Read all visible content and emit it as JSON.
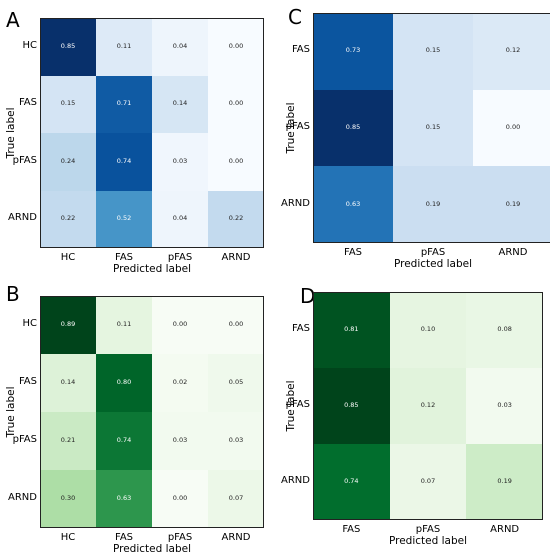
{
  "chart_data": [
    {
      "id": "A",
      "type": "heatmap",
      "panel_label": "A",
      "colormap": "blues",
      "xlabel": "Predicted label",
      "ylabel": "True label",
      "x_categories": [
        "HC",
        "FAS",
        "pFAS",
        "ARND"
      ],
      "y_categories": [
        "HC",
        "FAS",
        "pFAS",
        "ARND"
      ],
      "cell_labels": [
        [
          "0.85",
          "0.11",
          "0.04",
          "0.00"
        ],
        [
          "0.15",
          "0.71",
          "0.14",
          "0.00"
        ],
        [
          "0.24",
          "0.74",
          "0.03",
          "0.00"
        ],
        [
          "0.22",
          "0.52",
          "0.04",
          "0.22"
        ]
      ],
      "values": [
        [
          0.85,
          0.11,
          0.04,
          0.0
        ],
        [
          0.15,
          0.71,
          0.14,
          0.0
        ],
        [
          0.24,
          0.74,
          0.03,
          0.0
        ],
        [
          0.22,
          0.52,
          0.04,
          0.22
        ]
      ],
      "vmax": 0.85
    },
    {
      "id": "C",
      "type": "heatmap",
      "panel_label": "C",
      "colormap": "blues",
      "xlabel": "Predicted label",
      "ylabel": "True label",
      "x_categories": [
        "FAS",
        "pFAS",
        "ARND"
      ],
      "y_categories": [
        "FAS",
        "pFAS",
        "ARND"
      ],
      "cell_labels": [
        [
          "0.73",
          "0.15",
          "0.12"
        ],
        [
          "0.85",
          "0.15",
          "0.00"
        ],
        [
          "0.63",
          "0.19",
          "0.19"
        ]
      ],
      "values": [
        [
          0.73,
          0.15,
          0.12
        ],
        [
          0.85,
          0.15,
          0.0
        ],
        [
          0.63,
          0.19,
          0.19
        ]
      ],
      "vmax": 0.85
    },
    {
      "id": "B",
      "type": "heatmap",
      "panel_label": "B",
      "colormap": "greens",
      "xlabel": "Predicted label",
      "ylabel": "True label",
      "x_categories": [
        "HC",
        "FAS",
        "pFAS",
        "ARND"
      ],
      "y_categories": [
        "HC",
        "FAS",
        "pFAS",
        "ARND"
      ],
      "cell_labels": [
        [
          "0.89",
          "0.11",
          "0.00",
          "0.00"
        ],
        [
          "0.14",
          "0.80",
          "0.02",
          "0.05"
        ],
        [
          "0.21",
          "0.74",
          "0.03",
          "0.03"
        ],
        [
          "0.30",
          "0.63",
          "0.00",
          "0.07"
        ]
      ],
      "values": [
        [
          0.89,
          0.11,
          0.0,
          0.0
        ],
        [
          0.14,
          0.8,
          0.02,
          0.05
        ],
        [
          0.21,
          0.74,
          0.03,
          0.03
        ],
        [
          0.3,
          0.63,
          0.0,
          0.07
        ]
      ],
      "vmax": 0.89
    },
    {
      "id": "D",
      "type": "heatmap",
      "panel_label": "D",
      "colormap": "greens",
      "xlabel": "Predicted label",
      "ylabel": "True label",
      "x_categories": [
        "FAS",
        "pFAS",
        "ARND"
      ],
      "y_categories": [
        "FAS",
        "pFAS",
        "ARND"
      ],
      "cell_labels": [
        [
          "0.81",
          "0.10",
          "0.08"
        ],
        [
          "0.85",
          "0.12",
          "0.03"
        ],
        [
          "0.74",
          "0.07",
          "0.19"
        ]
      ],
      "values": [
        [
          0.81,
          0.1,
          0.08
        ],
        [
          0.85,
          0.12,
          0.03
        ],
        [
          0.74,
          0.07,
          0.19
        ]
      ],
      "vmax": 0.85
    }
  ]
}
